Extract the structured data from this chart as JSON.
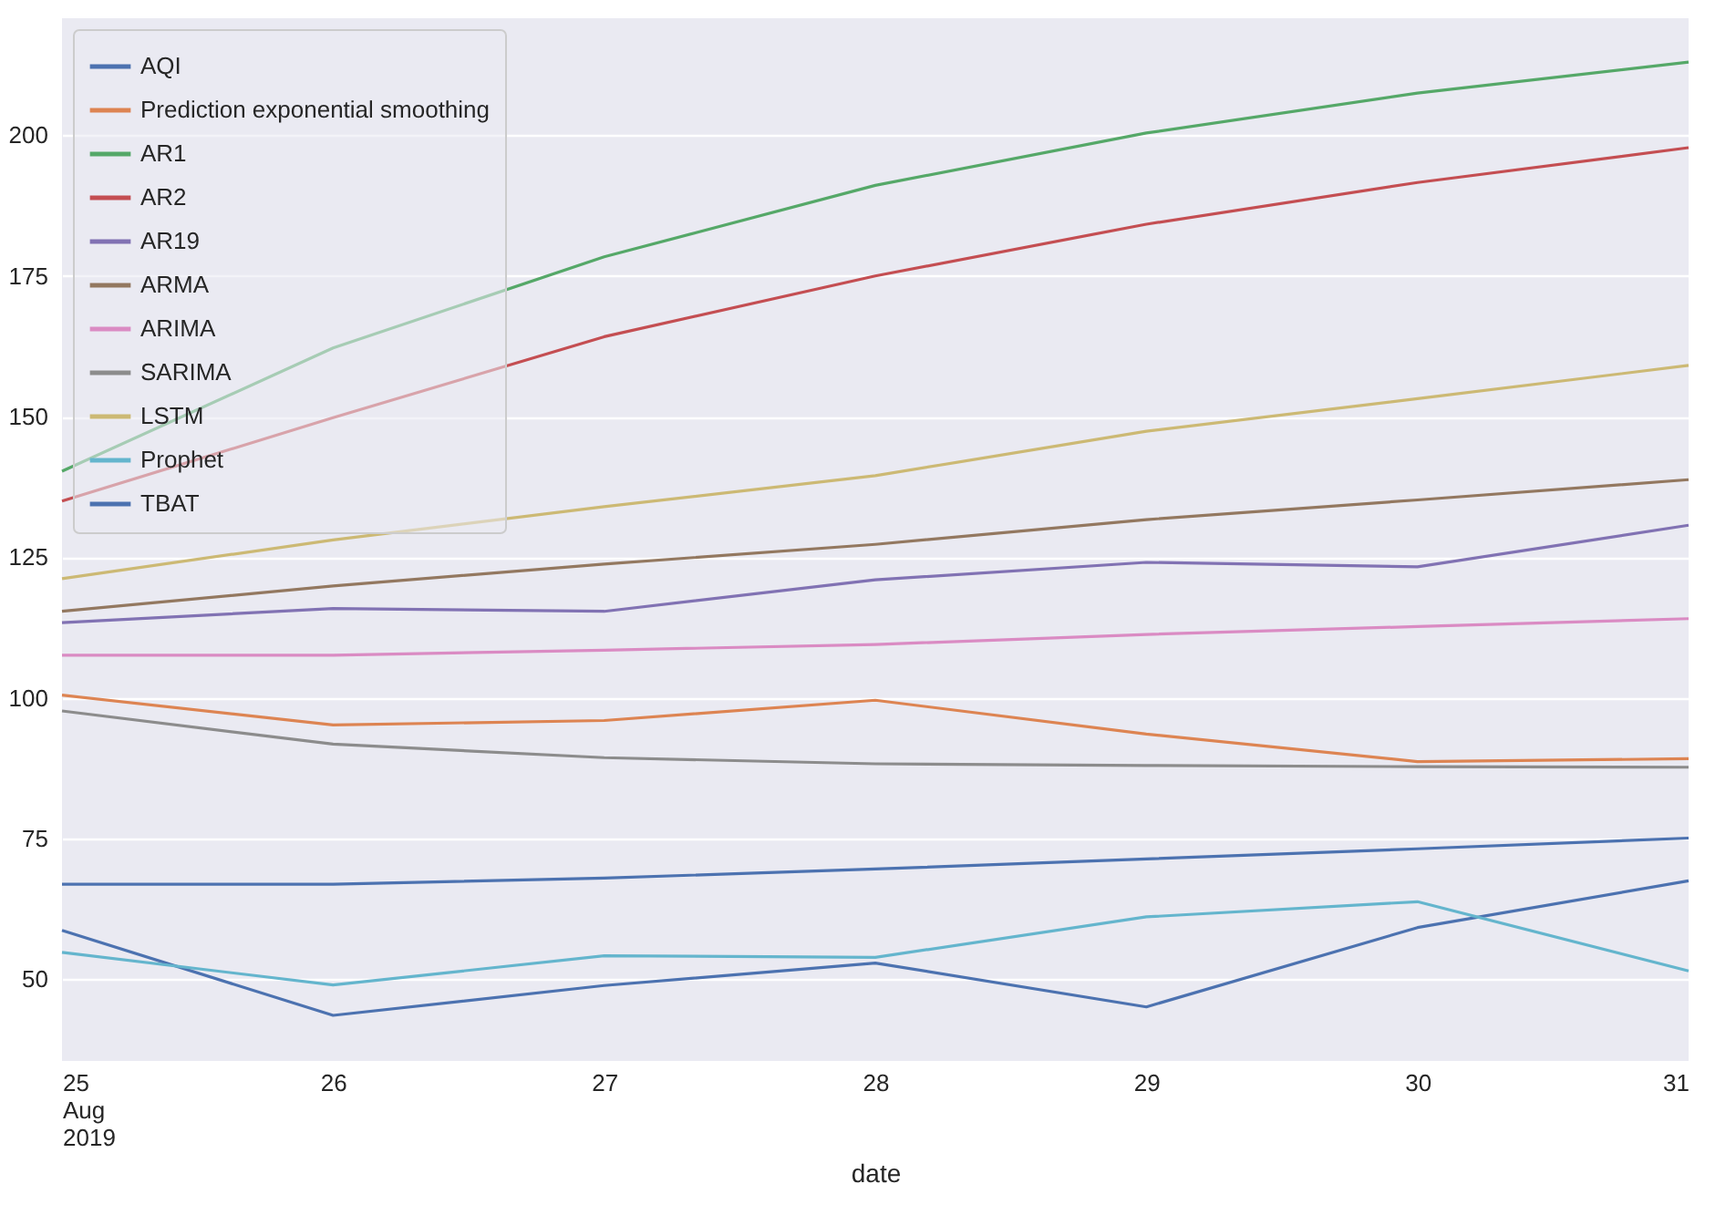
{
  "chart_data": {
    "type": "line",
    "xlabel": "date",
    "x": [
      "2019-08-25",
      "2019-08-26",
      "2019-08-27",
      "2019-08-28",
      "2019-08-29",
      "2019-08-30",
      "2019-08-31"
    ],
    "xlim": [
      "2019-08-25",
      "2019-08-31"
    ],
    "xticks": [
      {
        "value": "2019-08-25",
        "label": "25\nAug\n2019"
      },
      {
        "value": "2019-08-26",
        "label": "26"
      },
      {
        "value": "2019-08-27",
        "label": "27"
      },
      {
        "value": "2019-08-28",
        "label": "28"
      },
      {
        "value": "2019-08-29",
        "label": "29"
      },
      {
        "value": "2019-08-30",
        "label": "30"
      },
      {
        "value": "2019-08-31",
        "label": "31"
      }
    ],
    "ylim": [
      35.5,
      220.8
    ],
    "yticks": [
      50,
      75,
      100,
      125,
      150,
      175,
      200
    ],
    "grid": "y",
    "legend": "top left",
    "series": [
      {
        "name": "AQI",
        "color": "#4c72b0",
        "values": [
          58.7,
          43.6,
          48.9,
          52.9,
          45.1,
          59.2,
          67.5
        ]
      },
      {
        "name": "Prediction exponential smoothing",
        "color": "#dd8452",
        "values": [
          100.5,
          95.2,
          96.0,
          99.6,
          93.6,
          88.7,
          89.2
        ]
      },
      {
        "name": "AR1",
        "color": "#55a868",
        "values": [
          140.3,
          162.2,
          178.4,
          191.1,
          200.4,
          207.5,
          213.0
        ]
      },
      {
        "name": "AR2",
        "color": "#c44e52",
        "values": [
          135.0,
          149.8,
          164.2,
          175.0,
          184.2,
          191.6,
          197.8
        ]
      },
      {
        "name": "AR19",
        "color": "#8172b3",
        "values": [
          113.4,
          115.9,
          115.4,
          121.0,
          124.1,
          123.3,
          130.7
        ]
      },
      {
        "name": "ARMA",
        "color": "#937860",
        "values": [
          115.4,
          119.9,
          123.8,
          127.3,
          131.7,
          135.2,
          138.8
        ]
      },
      {
        "name": "ARIMA",
        "color": "#da8bc3",
        "values": [
          107.6,
          107.6,
          108.5,
          109.5,
          111.3,
          112.7,
          114.1
        ]
      },
      {
        "name": "SARIMA",
        "color": "#8c8c8c",
        "values": [
          97.7,
          91.8,
          89.4,
          88.3,
          88.0,
          87.8,
          87.7
        ]
      },
      {
        "name": "LSTM",
        "color": "#ccb974",
        "values": [
          121.2,
          128.1,
          134.0,
          139.5,
          147.4,
          153.2,
          159.1
        ]
      },
      {
        "name": "Prophet",
        "color": "#64b5cd",
        "values": [
          54.8,
          49.0,
          54.2,
          53.9,
          61.1,
          63.8,
          51.5
        ]
      },
      {
        "name": "TBAT",
        "color": "#4c72b0",
        "values": [
          66.9,
          66.9,
          68.0,
          69.6,
          71.4,
          73.2,
          75.1
        ]
      }
    ]
  }
}
